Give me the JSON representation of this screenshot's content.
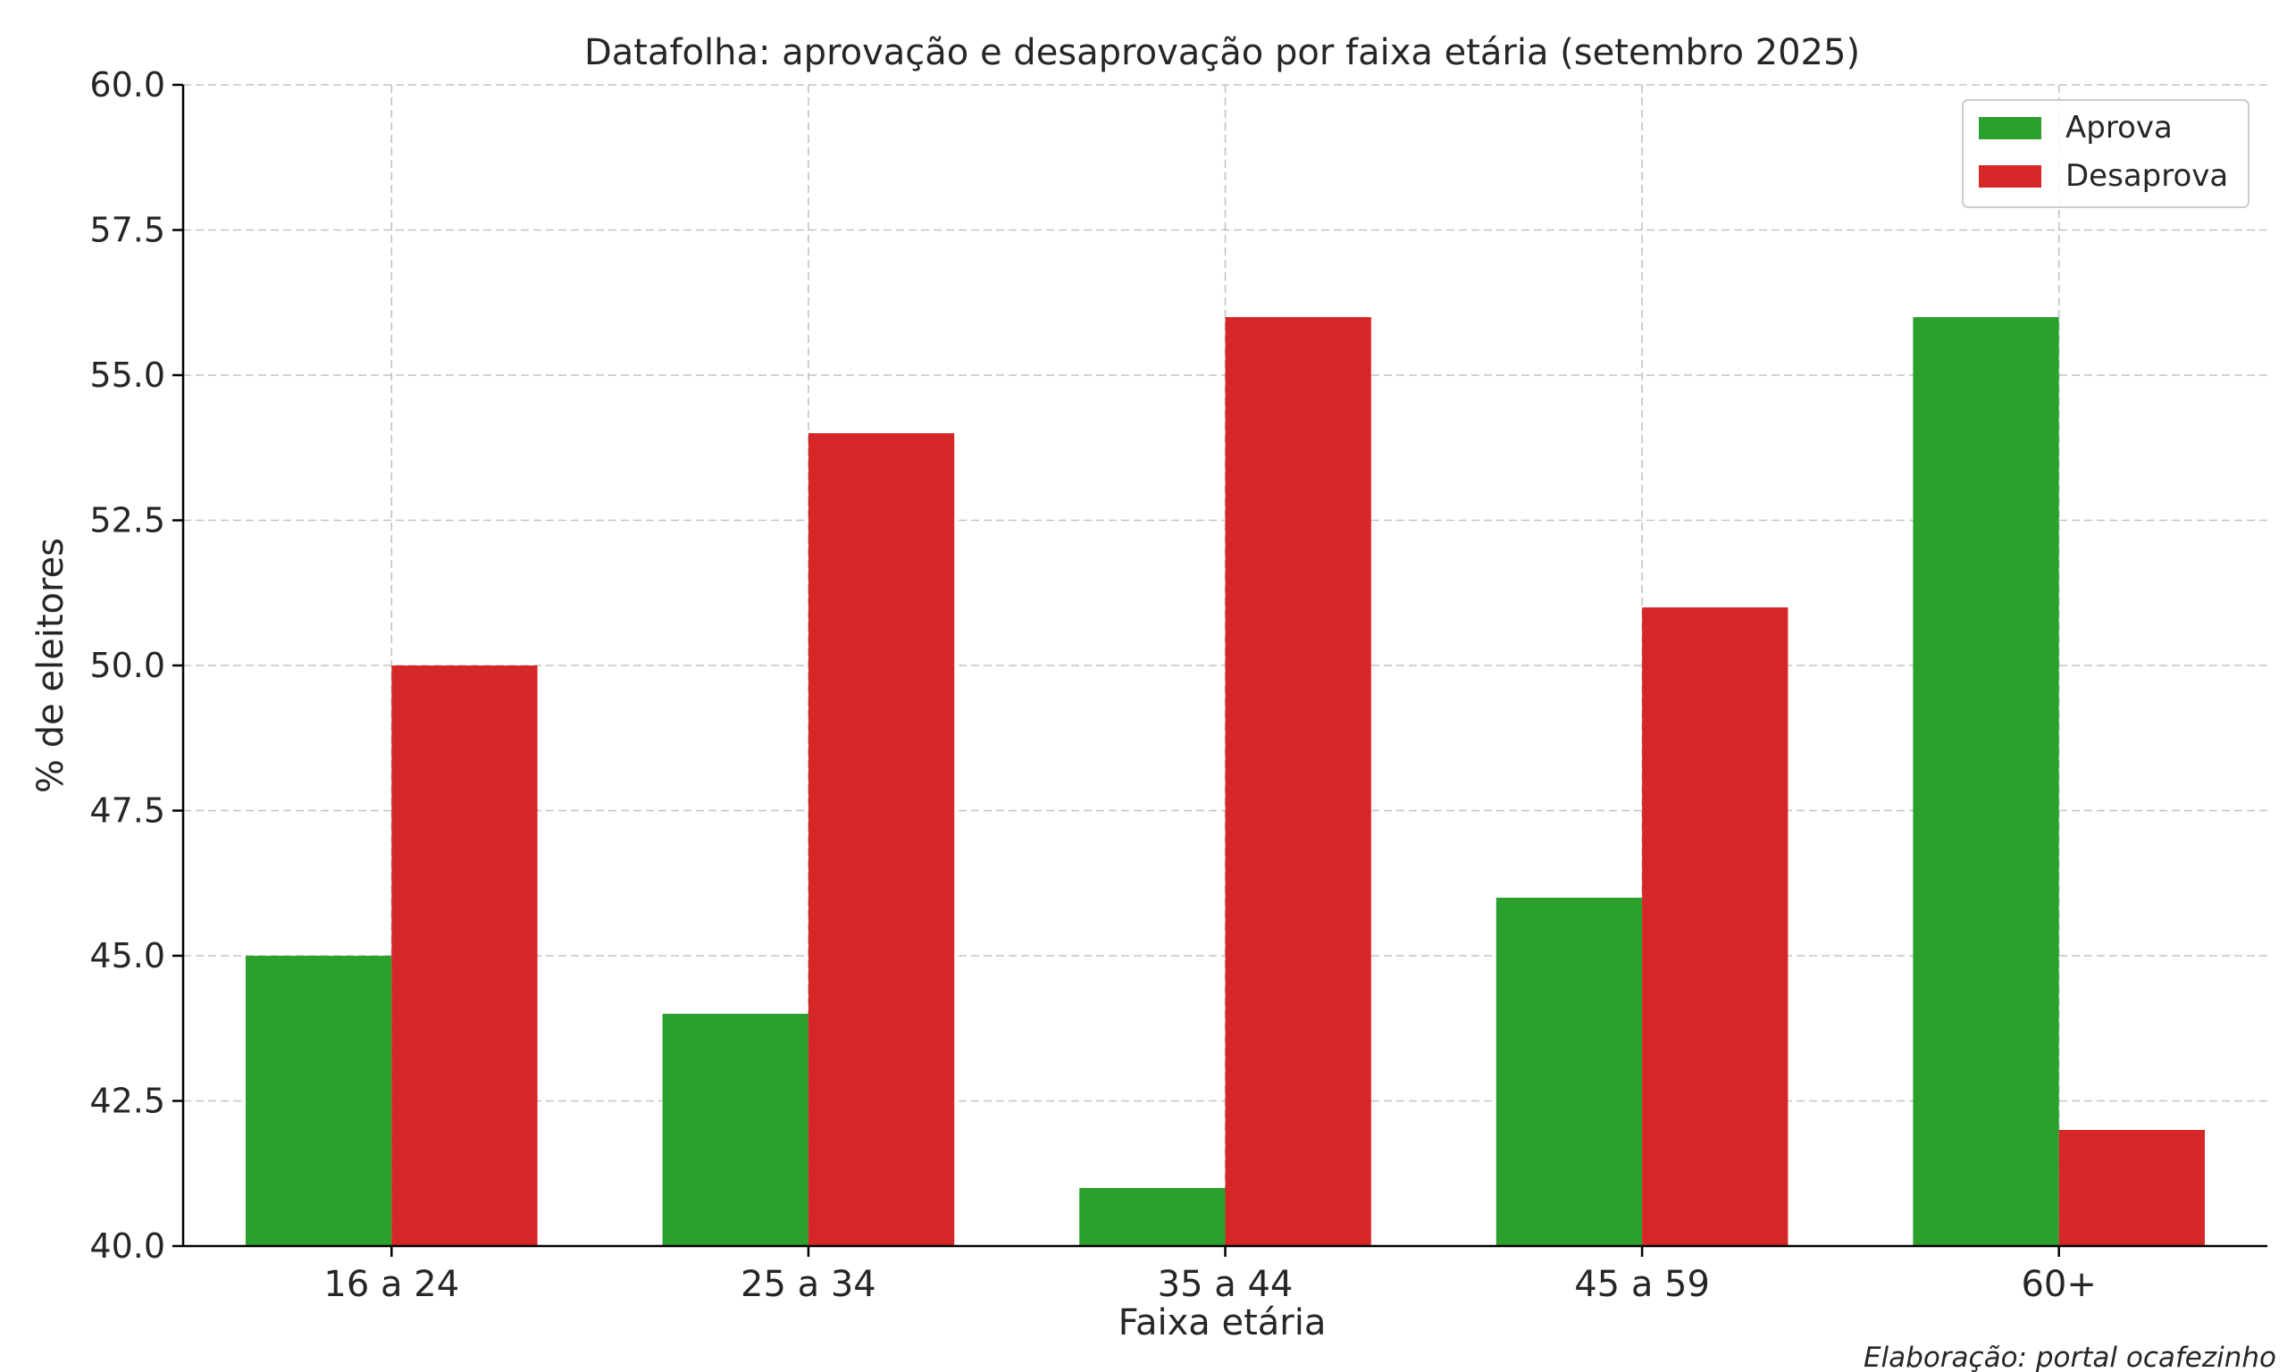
{
  "chart_data": {
    "type": "bar",
    "title": "Datafolha: aprovação e desaprovação por faixa etária (setembro 2025)",
    "xlabel": "Faixa etária",
    "ylabel": "% de eleitores",
    "categories": [
      "16 a 24",
      "25 a 34",
      "35 a 44",
      "45 a 59",
      "60+"
    ],
    "series": [
      {
        "name": "Aprova",
        "color": "#2ca02c",
        "values": [
          45,
          44,
          41,
          46,
          56
        ]
      },
      {
        "name": "Desaprova",
        "color": "#d62728",
        "values": [
          50,
          54,
          56,
          51,
          42
        ]
      }
    ],
    "ylim": [
      40,
      60
    ],
    "yticks": [
      "40.0",
      "42.5",
      "45.0",
      "47.5",
      "50.0",
      "52.5",
      "55.0",
      "57.5",
      "60.0"
    ],
    "grid": true,
    "legend_position": "top-right",
    "credit": "Elaboração: portal ocafezinho"
  }
}
